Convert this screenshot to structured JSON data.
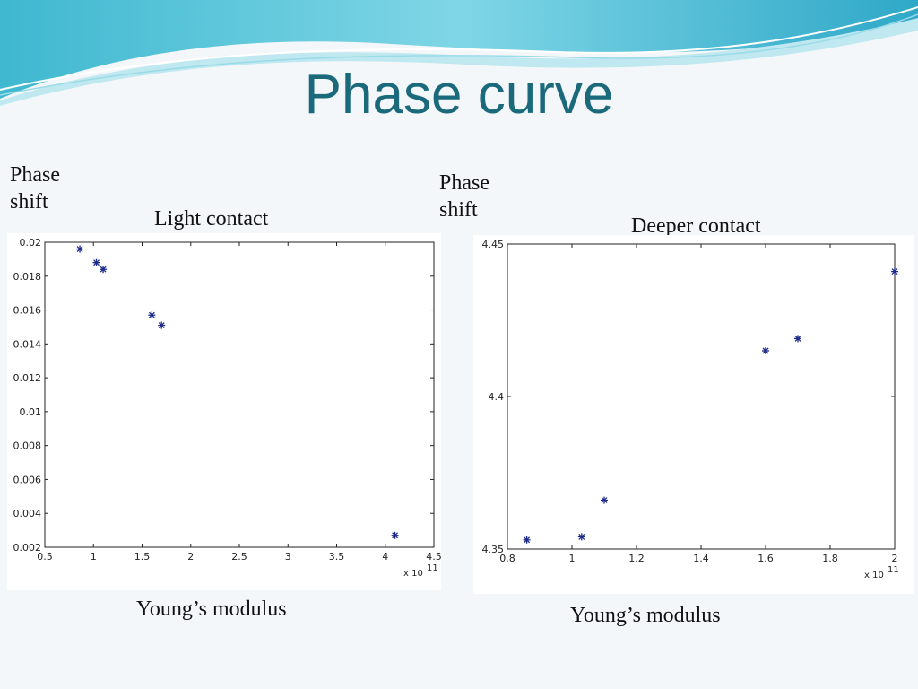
{
  "slide": {
    "title": "Phase curve"
  },
  "colors": {
    "title": "#1a6a7c",
    "marker": "#1d2a8a",
    "axis": "#222222"
  },
  "panels": [
    {
      "ylabel": "Phase shift",
      "subtitle": "Light contact",
      "xlabel": "Young’s modulus",
      "x_exponent": "11"
    },
    {
      "ylabel": "Phase shift",
      "subtitle": "Deeper contact",
      "xlabel": "Young’s modulus",
      "x_exponent": "11"
    }
  ],
  "chart_data": [
    {
      "type": "scatter",
      "title": "Light contact",
      "xlabel": "Young’s modulus",
      "ylabel": "Phase shift",
      "x_scale_note": "x 10^11",
      "xlim": [
        0.5,
        4.5
      ],
      "ylim": [
        0.002,
        0.02
      ],
      "x_ticks": [
        "0.5",
        "1",
        "1.5",
        "2",
        "2.5",
        "3",
        "3.5",
        "4",
        "4.5"
      ],
      "y_ticks": [
        "0.002",
        "0.004",
        "0.006",
        "0.008",
        "0.01",
        "0.012",
        "0.014",
        "0.016",
        "0.018",
        "0.02"
      ],
      "marker": "*",
      "grid": false,
      "series": [
        {
          "x": [
            0.86,
            1.03,
            1.1,
            1.6,
            1.7,
            4.1
          ],
          "y": [
            0.0196,
            0.0188,
            0.0184,
            0.0157,
            0.0151,
            0.0027
          ]
        }
      ]
    },
    {
      "type": "scatter",
      "title": "Deeper contact",
      "xlabel": "Young’s modulus",
      "ylabel": "Phase shift",
      "x_scale_note": "x 10^11",
      "xlim": [
        0.8,
        2.0
      ],
      "ylim": [
        4.35,
        4.45
      ],
      "x_ticks": [
        "0.8",
        "1",
        "1.2",
        "1.4",
        "1.6",
        "1.8",
        "2"
      ],
      "y_ticks": [
        "4.35",
        "4.4",
        "4.45"
      ],
      "marker": "*",
      "grid": false,
      "series": [
        {
          "x": [
            0.86,
            1.03,
            1.1,
            1.6,
            1.7,
            2.0
          ],
          "y": [
            4.353,
            4.354,
            4.366,
            4.415,
            4.419,
            4.441
          ]
        }
      ]
    }
  ]
}
